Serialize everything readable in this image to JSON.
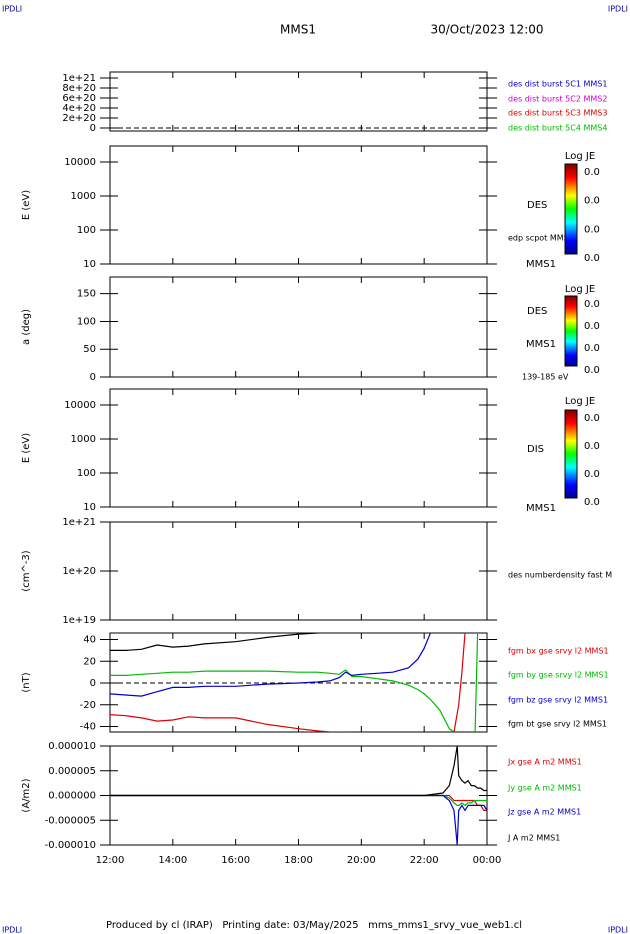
{
  "header": {
    "corner_left": "IPDLI",
    "corner_right": "IPDLI",
    "title": "MMS1",
    "date": "30/Oct/2023 12:00"
  },
  "footer": {
    "text": "Produced by cl (IRAP)   Printing date: 03/May/2025   mms_mms1_srvy_vue_web1.cl",
    "corner_left": "IPDLI",
    "corner_right": "IPDLI"
  },
  "chart_data": [
    {
      "type": "line",
      "ylim": [
        -6e+19,
        1.12e+21
      ],
      "yticks": [
        0,
        {
          "value": 2e+20,
          "label": "2e+20"
        },
        {
          "value": 4e+20,
          "label": "4e+20"
        },
        {
          "value": 6e+20,
          "label": "6e+20"
        },
        {
          "value": 8e+20,
          "label": "8e+20"
        },
        {
          "value": 1e+21,
          "label": "1e+21"
        }
      ],
      "hline": 0,
      "series": [
        {
          "name": "des dist burst 5C1 MMS1",
          "color": "#0000cc"
        },
        {
          "name": "des dist burst 5C2 MMS2",
          "color": "#cc00cc"
        },
        {
          "name": "des dist burst 5C3 MMS3",
          "color": "#dd0000"
        },
        {
          "name": "des dist burst 5C4 MMS4",
          "color": "#00bb00"
        }
      ]
    },
    {
      "type": "spectrogram",
      "ylabel": "E (eV)",
      "log": true,
      "ylim": [
        10,
        29500
      ],
      "yticks": [
        10,
        100,
        1000,
        10000
      ],
      "right_labels": [
        "DES",
        "edp scpot MMS1",
        "MMS1"
      ],
      "colorbar": {
        "title": "Log JE",
        "tick_labels": [
          "0.0",
          "0.0",
          "0.0",
          "0.0"
        ]
      }
    },
    {
      "type": "spectrogram",
      "ylabel": "a (deg)",
      "ylim": [
        0,
        180
      ],
      "yticks": [
        0,
        50,
        100,
        150
      ],
      "right_labels": [
        "DES",
        "MMS1",
        "139-185 eV"
      ],
      "colorbar": {
        "title": "Log JE",
        "tick_labels": [
          "0.0",
          "0.0",
          "0.0",
          "0.0"
        ]
      }
    },
    {
      "type": "spectrogram",
      "ylabel": "E (eV)",
      "log": true,
      "ylim": [
        10,
        29500
      ],
      "yticks": [
        10,
        100,
        1000,
        10000
      ],
      "right_labels": [
        "DIS",
        "MMS1"
      ],
      "colorbar": {
        "title": "Log JE",
        "tick_labels": [
          "0.0",
          "0.0",
          "0.0",
          "0.0"
        ]
      }
    },
    {
      "type": "line",
      "ylabel": "(cm^-3)",
      "log": true,
      "ylim": [
        1e+19,
        1e+21
      ],
      "yticks": [
        {
          "value": 1e+19,
          "label": "1e+19"
        },
        {
          "value": 1e+20,
          "label": "1e+20"
        },
        {
          "value": 1e+21,
          "label": "1e+21"
        }
      ],
      "right_labels": [
        "des numberdensity fast M"
      ]
    },
    {
      "type": "line",
      "ylabel": "(nT)",
      "ylim": [
        -45,
        46
      ],
      "yticks": [
        -40,
        -20,
        0,
        20,
        40
      ],
      "hline": 0,
      "x": [
        12,
        12.5,
        13,
        13.5,
        14,
        14.5,
        15,
        16,
        17,
        18,
        18.6,
        19,
        19.3,
        19.5,
        19.7,
        20,
        20.5,
        21,
        21.5,
        21.8,
        22,
        22.2,
        22.5,
        22.8,
        22.95,
        23.1,
        23.2,
        23.3,
        23.5,
        23.62,
        23.7
      ],
      "series": [
        {
          "name": "fgm bx gse srvy l2 MMS1",
          "color": "#dd0000",
          "values": [
            -29,
            -30,
            -32,
            -35,
            -34,
            -31,
            -32,
            -32,
            -38,
            -42,
            -44,
            -45,
            -45,
            -45,
            null,
            null,
            null,
            null,
            null,
            null,
            null,
            null,
            null,
            null,
            -45,
            -20,
            10,
            46,
            null,
            null,
            null
          ]
        },
        {
          "name": "fgm by gse srvy l2 MMS1",
          "color": "#00bb00",
          "values": [
            7,
            7,
            8,
            9,
            10,
            10,
            11,
            11,
            11,
            10,
            10,
            9,
            8,
            12,
            6,
            6,
            4,
            2,
            -2,
            -6,
            -10,
            -15,
            -25,
            -42,
            -45,
            null,
            null,
            null,
            null,
            -45,
            46
          ]
        },
        {
          "name": "fgm bz gse srvy l2 MMS1",
          "color": "#0000cc",
          "values": [
            -10,
            -11,
            -12,
            -8,
            -4,
            -4,
            -3,
            -3,
            -1,
            0,
            1,
            2,
            5,
            10,
            7,
            8,
            9,
            10,
            14,
            22,
            32,
            46,
            null,
            null,
            null,
            null,
            null,
            null,
            null,
            null,
            null
          ]
        },
        {
          "name": "fgm bt gse srvy l2 MMS1",
          "color": "#000000",
          "values": [
            30,
            30,
            31,
            35,
            33,
            34,
            36,
            38,
            42,
            45,
            46,
            null,
            null,
            null,
            null,
            null,
            null,
            null,
            null,
            null,
            null,
            null,
            null,
            null,
            null,
            null,
            null,
            null,
            null,
            null,
            null
          ]
        }
      ]
    },
    {
      "type": "line",
      "ylabel": "(A/m2)",
      "ylim": [
        -1e-05,
        1e-05
      ],
      "yticks": [
        {
          "value": -1e-05,
          "label": "-0.000010"
        },
        {
          "value": -5e-06,
          "label": "-0.000005"
        },
        {
          "value": 0,
          "label": "0.000000"
        },
        {
          "value": 5e-06,
          "label": "0.000005"
        },
        {
          "value": 1e-05,
          "label": "0.000010"
        }
      ],
      "xlim": [
        12,
        24
      ],
      "xticks": [
        {
          "value": 12,
          "label": "12:00"
        },
        {
          "value": 14,
          "label": "14:00"
        },
        {
          "value": 16,
          "label": "16:00"
        },
        {
          "value": 18,
          "label": "18:00"
        },
        {
          "value": 20,
          "label": "20:00"
        },
        {
          "value": 22,
          "label": "22:00"
        },
        {
          "value": 24,
          "label": "00:00"
        }
      ],
      "x": [
        12,
        16,
        20,
        22,
        22.6,
        22.8,
        22.95,
        23.05,
        23.1,
        23.2,
        23.3,
        23.4,
        23.5,
        23.6,
        23.7,
        23.8,
        23.9,
        24
      ],
      "series": [
        {
          "name": "Jx gse A m2 MMS1",
          "color": "#dd0000",
          "values": [
            0,
            0,
            0,
            0,
            0,
            0,
            -1e-06,
            -1e-06,
            -1e-06,
            -1e-06,
            -1e-06,
            -1e-06,
            -1e-06,
            -1e-06,
            -2e-06,
            -2e-06,
            -3e-06,
            -3e-06
          ]
        },
        {
          "name": "Jy gse A m2 MMS1",
          "color": "#00bb00",
          "values": [
            0,
            0,
            0,
            0,
            0,
            -5e-07,
            -1.5e-06,
            -2e-06,
            -2e-06,
            -1.5e-06,
            -2e-06,
            -1.5e-06,
            -1.5e-06,
            -1e-06,
            -1e-06,
            -1e-06,
            -1e-06,
            -1e-06
          ]
        },
        {
          "name": "Jz gse A m2 MMS1",
          "color": "#0000cc",
          "values": [
            0,
            0,
            0,
            0,
            0,
            -1e-06,
            -3e-06,
            -1e-05,
            -3e-06,
            -2e-06,
            -3e-06,
            -2e-06,
            -2e-06,
            -2e-06,
            -2e-06,
            -2e-06,
            -2e-06,
            -3e-06
          ]
        },
        {
          "name": "J A m2 MMS1",
          "color": "#000000",
          "values": [
            0,
            0,
            0,
            0,
            5e-07,
            2e-06,
            6e-06,
            1e-05,
            4e-06,
            3e-06,
            2.5e-06,
            3e-06,
            2e-06,
            2e-06,
            1.5e-06,
            1.5e-06,
            1e-06,
            1e-06
          ]
        }
      ]
    }
  ]
}
